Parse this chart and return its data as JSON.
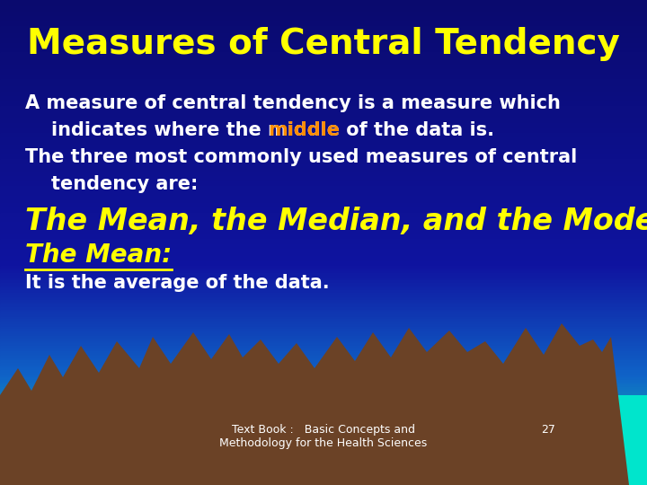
{
  "title": "Measures of Central Tendency",
  "title_color": "#FFFF00",
  "title_fontsize": 28,
  "line1": "A measure of central tendency is a measure which",
  "line2_prefix": "    indicates where the ",
  "line2_middle": "middle",
  "line2_suffix": " of the data is.",
  "line3": "The three most commonly used measures of central",
  "line4": "    tendency are:",
  "big_line": "The Mean, the Median, and the Mode.",
  "mean_label": "The Mean:",
  "last_line": "It is the average of the data.",
  "white": "#FFFFFF",
  "yellow": "#FFFF00",
  "orange": "#FF8C00",
  "body_fontsize": 15,
  "big_fontsize": 24,
  "mean_fontsize": 20,
  "footer_text": "Text Book :   Basic Concepts and\nMethodology for the Health Sciences",
  "footer_page": "27",
  "footer_fontsize": 9,
  "mountain_color": "#6B4226",
  "teal_color": "#00E5CC",
  "bg_dark": "#0A0A6E",
  "bg_mid": "#1A1AA0",
  "bg_light_teal": "#0099AA"
}
